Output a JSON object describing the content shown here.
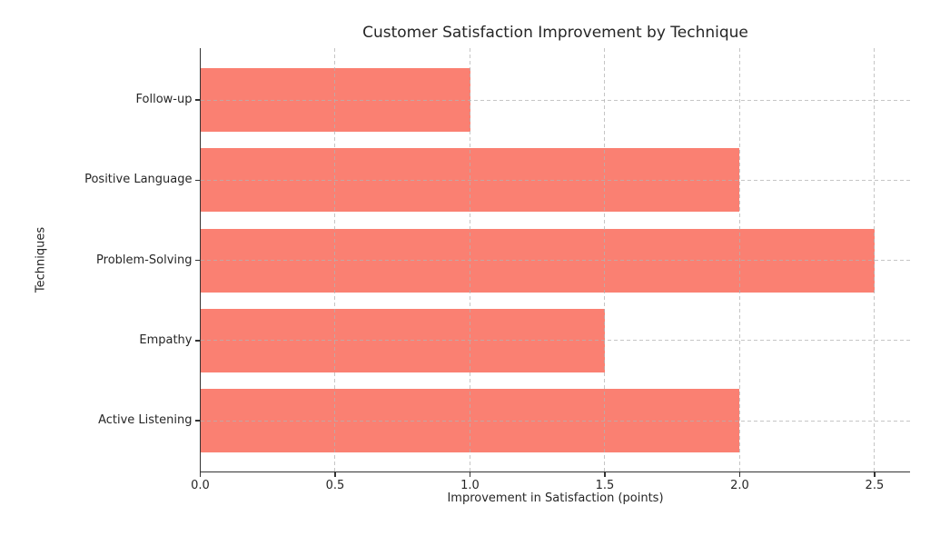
{
  "chart_data": {
    "type": "bar",
    "orientation": "horizontal",
    "title": "Customer Satisfaction Improvement by Technique",
    "xlabel": "Improvement in Satisfaction (points)",
    "ylabel": "Techniques",
    "categories": [
      "Follow-up",
      "Positive Language",
      "Problem-Solving",
      "Empathy",
      "Active Listening"
    ],
    "values": [
      1.0,
      2.0,
      2.5,
      1.5,
      2.0
    ],
    "xticks": [
      0.0,
      0.5,
      1.0,
      1.5,
      2.0,
      2.5
    ],
    "xtick_labels": [
      "0.0",
      "0.5",
      "1.0",
      "1.5",
      "2.0",
      "2.5"
    ],
    "xlim": [
      0,
      2.63
    ],
    "grid": true,
    "grid_style": "dashed",
    "legend": "none",
    "bar_color": "#FA8072",
    "background_color": "#ffffff"
  }
}
